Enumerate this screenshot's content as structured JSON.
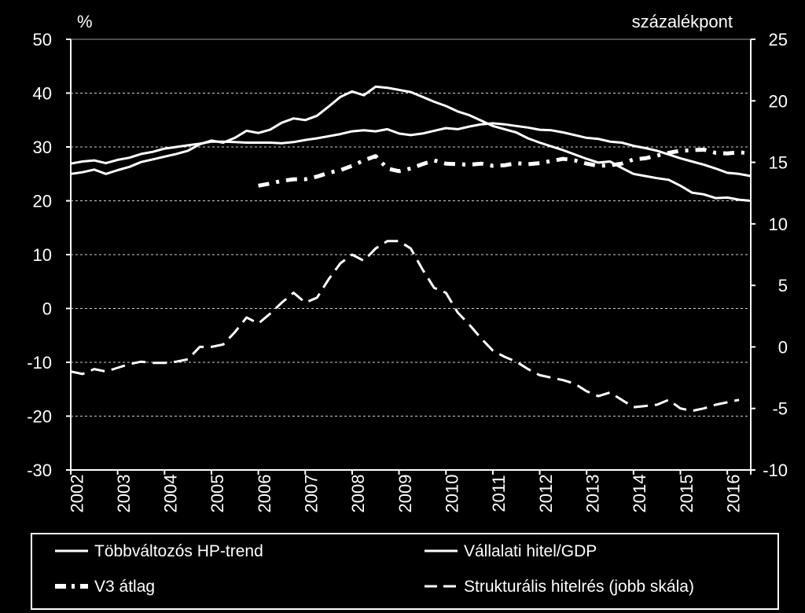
{
  "chart_data": {
    "type": "line",
    "left_axis": {
      "unit": "%",
      "ylim": [
        -30,
        50
      ],
      "ticks": [
        "50",
        "40",
        "30",
        "20",
        "10",
        "0",
        "-10",
        "-20",
        "-30"
      ]
    },
    "right_axis": {
      "unit": "százalékpont",
      "ylim": [
        -10,
        25
      ],
      "ticks": [
        "25",
        "20",
        "15",
        "10",
        "5",
        "0",
        "-5",
        "-10"
      ]
    },
    "x_ticks": [
      "2002",
      "2003",
      "2004",
      "2005",
      "2006",
      "2007",
      "2008",
      "2009",
      "2010",
      "2011",
      "2012",
      "2013",
      "2014",
      "2015",
      "2016"
    ],
    "x_range": [
      2002.0,
      2016.5
    ],
    "grid": "horizontal dashed, left axis ticks",
    "legend_position": "bottom",
    "series": [
      {
        "name": "Többváltozós HP-trend",
        "axis": "left",
        "style": "solid",
        "x": [
          2002.0,
          2002.25,
          2002.5,
          2002.75,
          2003.0,
          2003.25,
          2003.5,
          2003.75,
          2004.0,
          2004.25,
          2004.5,
          2004.75,
          2005.0,
          2005.25,
          2005.5,
          2005.75,
          2006.0,
          2006.25,
          2006.5,
          2006.75,
          2007.0,
          2007.25,
          2007.5,
          2007.75,
          2008.0,
          2008.25,
          2008.5,
          2008.75,
          2009.0,
          2009.25,
          2009.5,
          2009.75,
          2010.0,
          2010.25,
          2010.5,
          2010.75,
          2011.0,
          2011.25,
          2011.5,
          2011.75,
          2012.0,
          2012.25,
          2012.5,
          2012.75,
          2013.0,
          2013.25,
          2013.5,
          2013.75,
          2014.0,
          2014.25,
          2014.5,
          2014.75,
          2015.0,
          2015.25,
          2015.5,
          2015.75,
          2016.0,
          2016.25,
          2016.5
        ],
        "values": [
          26.9,
          27.3,
          27.5,
          27.0,
          27.6,
          28.0,
          28.7,
          29.1,
          29.7,
          30.0,
          30.3,
          30.6,
          31.0,
          31.0,
          30.9,
          30.8,
          30.8,
          30.8,
          30.7,
          30.9,
          31.3,
          31.6,
          32.0,
          32.4,
          32.9,
          33.1,
          32.9,
          33.3,
          32.5,
          32.2,
          32.5,
          33.0,
          33.5,
          33.3,
          33.8,
          34.2,
          34.4,
          34.2,
          33.9,
          33.6,
          33.2,
          33.1,
          32.7,
          32.2,
          31.7,
          31.5,
          31.0,
          30.8,
          30.2,
          29.8,
          29.3,
          28.6,
          27.9,
          27.3,
          26.7,
          26.0,
          25.2,
          25.0,
          24.6
        ]
      },
      {
        "name": "Vállalati hitel/GDP",
        "axis": "left",
        "style": "solid",
        "x": [
          2002.0,
          2002.25,
          2002.5,
          2002.75,
          2003.0,
          2003.25,
          2003.5,
          2003.75,
          2004.0,
          2004.25,
          2004.5,
          2004.75,
          2005.0,
          2005.25,
          2005.5,
          2005.75,
          2006.0,
          2006.25,
          2006.5,
          2006.75,
          2007.0,
          2007.25,
          2007.5,
          2007.75,
          2008.0,
          2008.25,
          2008.5,
          2008.75,
          2009.0,
          2009.25,
          2009.5,
          2009.75,
          2010.0,
          2010.25,
          2010.5,
          2010.75,
          2011.0,
          2011.25,
          2011.5,
          2011.75,
          2012.0,
          2012.25,
          2012.5,
          2012.75,
          2013.0,
          2013.25,
          2013.5,
          2013.75,
          2014.0,
          2014.25,
          2014.5,
          2014.75,
          2015.0,
          2015.25,
          2015.5,
          2015.75,
          2016.0,
          2016.25,
          2016.5
        ],
        "values": [
          25.0,
          25.3,
          25.8,
          25.0,
          25.7,
          26.3,
          27.2,
          27.7,
          28.2,
          28.7,
          29.3,
          30.5,
          31.2,
          30.8,
          31.7,
          33.0,
          32.6,
          33.2,
          34.5,
          35.3,
          35.0,
          35.8,
          37.5,
          39.3,
          40.3,
          39.6,
          41.2,
          41.0,
          40.6,
          40.2,
          39.3,
          38.4,
          37.6,
          36.6,
          35.9,
          34.9,
          33.9,
          33.3,
          32.7,
          31.6,
          30.8,
          30.1,
          29.4,
          28.6,
          27.8,
          27.1,
          27.3,
          26.1,
          25.0,
          24.6,
          24.2,
          23.9,
          22.8,
          21.5,
          21.2,
          20.5,
          20.6,
          20.2,
          20.0
        ]
      },
      {
        "name": "V3 átlag",
        "axis": "left",
        "style": "dash-dot",
        "x": [
          2006.0,
          2006.25,
          2006.5,
          2006.75,
          2007.0,
          2007.25,
          2007.5,
          2007.75,
          2008.0,
          2008.25,
          2008.5,
          2008.75,
          2009.0,
          2009.25,
          2009.5,
          2009.75,
          2010.0,
          2010.25,
          2010.5,
          2010.75,
          2011.0,
          2011.25,
          2011.5,
          2011.75,
          2012.0,
          2012.25,
          2012.5,
          2012.75,
          2013.0,
          2013.25,
          2013.5,
          2013.75,
          2014.0,
          2014.25,
          2014.5,
          2014.75,
          2015.0,
          2015.25,
          2015.5,
          2015.75,
          2016.0,
          2016.25,
          2016.5
        ],
        "values": [
          22.8,
          23.2,
          23.7,
          24.0,
          24.0,
          24.5,
          25.2,
          25.7,
          26.5,
          27.5,
          28.3,
          26.0,
          25.5,
          26.0,
          26.8,
          27.5,
          26.9,
          26.8,
          26.7,
          26.9,
          26.5,
          26.6,
          27.0,
          26.8,
          27.0,
          27.4,
          27.8,
          27.5,
          26.9,
          26.5,
          26.6,
          26.9,
          27.7,
          27.9,
          28.4,
          28.9,
          29.3,
          29.4,
          29.5,
          28.9,
          28.8,
          29.0,
          28.8
        ]
      },
      {
        "name": "Strukturális hitelrés (jobb skála)",
        "axis": "right",
        "style": "dashed",
        "x": [
          2002.0,
          2002.25,
          2002.5,
          2002.75,
          2003.0,
          2003.25,
          2003.5,
          2003.75,
          2004.0,
          2004.25,
          2004.5,
          2004.75,
          2005.0,
          2005.25,
          2005.5,
          2005.75,
          2006.0,
          2006.25,
          2006.5,
          2006.75,
          2007.0,
          2007.25,
          2007.5,
          2007.75,
          2008.0,
          2008.25,
          2008.5,
          2008.75,
          2009.0,
          2009.25,
          2009.5,
          2009.75,
          2010.0,
          2010.25,
          2010.5,
          2010.75,
          2011.0,
          2011.25,
          2011.5,
          2011.75,
          2012.0,
          2012.25,
          2012.5,
          2012.75,
          2013.0,
          2013.25,
          2013.5,
          2013.75,
          2014.0,
          2014.25,
          2014.5,
          2014.75,
          2015.0,
          2015.25,
          2015.5,
          2015.75,
          2016.0,
          2016.25
        ],
        "values": [
          -2.0,
          -2.2,
          -1.8,
          -2.0,
          -1.7,
          -1.4,
          -1.2,
          -1.3,
          -1.3,
          -1.2,
          -1.0,
          0.0,
          0.0,
          0.2,
          1.2,
          2.4,
          1.9,
          2.7,
          3.6,
          4.4,
          3.6,
          4.0,
          5.5,
          6.8,
          7.5,
          7.0,
          8.0,
          8.6,
          8.6,
          8.0,
          6.3,
          4.8,
          4.4,
          2.8,
          1.8,
          0.7,
          -0.3,
          -0.8,
          -1.2,
          -1.8,
          -2.3,
          -2.5,
          -2.7,
          -3.0,
          -3.6,
          -4.0,
          -3.7,
          -4.3,
          -4.9,
          -4.8,
          -4.7,
          -4.3,
          -5.0,
          -5.2,
          -5.0,
          -4.7,
          -4.5,
          -4.3
        ]
      }
    ]
  }
}
